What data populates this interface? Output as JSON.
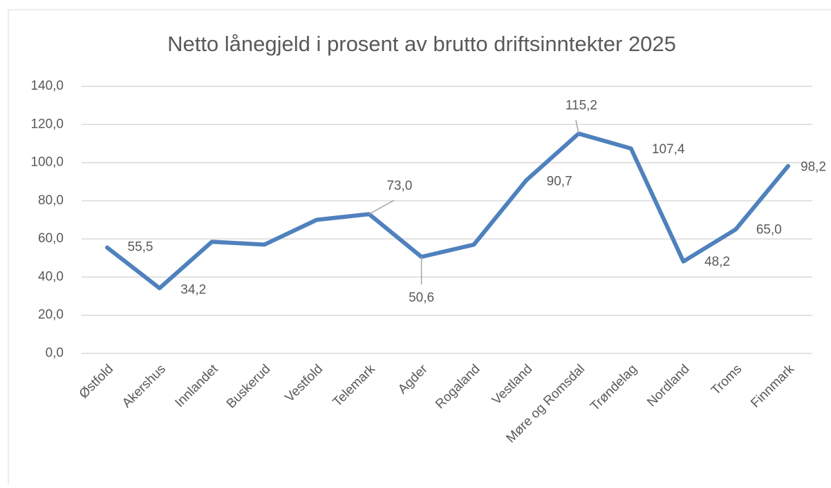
{
  "chart_data": {
    "type": "line",
    "title": "Netto lånegjeld i prosent av brutto driftsinntekter 2025",
    "categories": [
      "Østfold",
      "Akershus",
      "Innlandet",
      "Buskerud",
      "Vestfold",
      "Telemark",
      "Agder",
      "Rogaland",
      "Vestland",
      "Møre og Romsdal",
      "Trøndelag",
      "Nordland",
      "Troms",
      "Finnmark"
    ],
    "series": [
      {
        "name": null,
        "color": "#4f81bd",
        "values": [
          55.5,
          34.2,
          58.5,
          57,
          70,
          73.0,
          50.6,
          57,
          90.7,
          115.2,
          107.4,
          48.2,
          65.0,
          98.2
        ],
        "value_labels": [
          "55,5",
          "34,2",
          null,
          null,
          null,
          "73,0",
          "50,6",
          null,
          "90,7",
          "115,2",
          "107,4",
          "48,2",
          "65,0",
          "98,2"
        ]
      }
    ],
    "ylim": [
      0,
      140
    ],
    "yticks": [
      {
        "value": 0,
        "label": "0,0"
      },
      {
        "value": 20,
        "label": "20,0"
      },
      {
        "value": 40,
        "label": "40,0"
      },
      {
        "value": 60,
        "label": "60,0"
      },
      {
        "value": 80,
        "label": "80,0"
      },
      {
        "value": 100,
        "label": "100,0"
      },
      {
        "value": 120,
        "label": "120,0"
      },
      {
        "value": 140,
        "label": "140,0"
      }
    ],
    "grid": true
  }
}
